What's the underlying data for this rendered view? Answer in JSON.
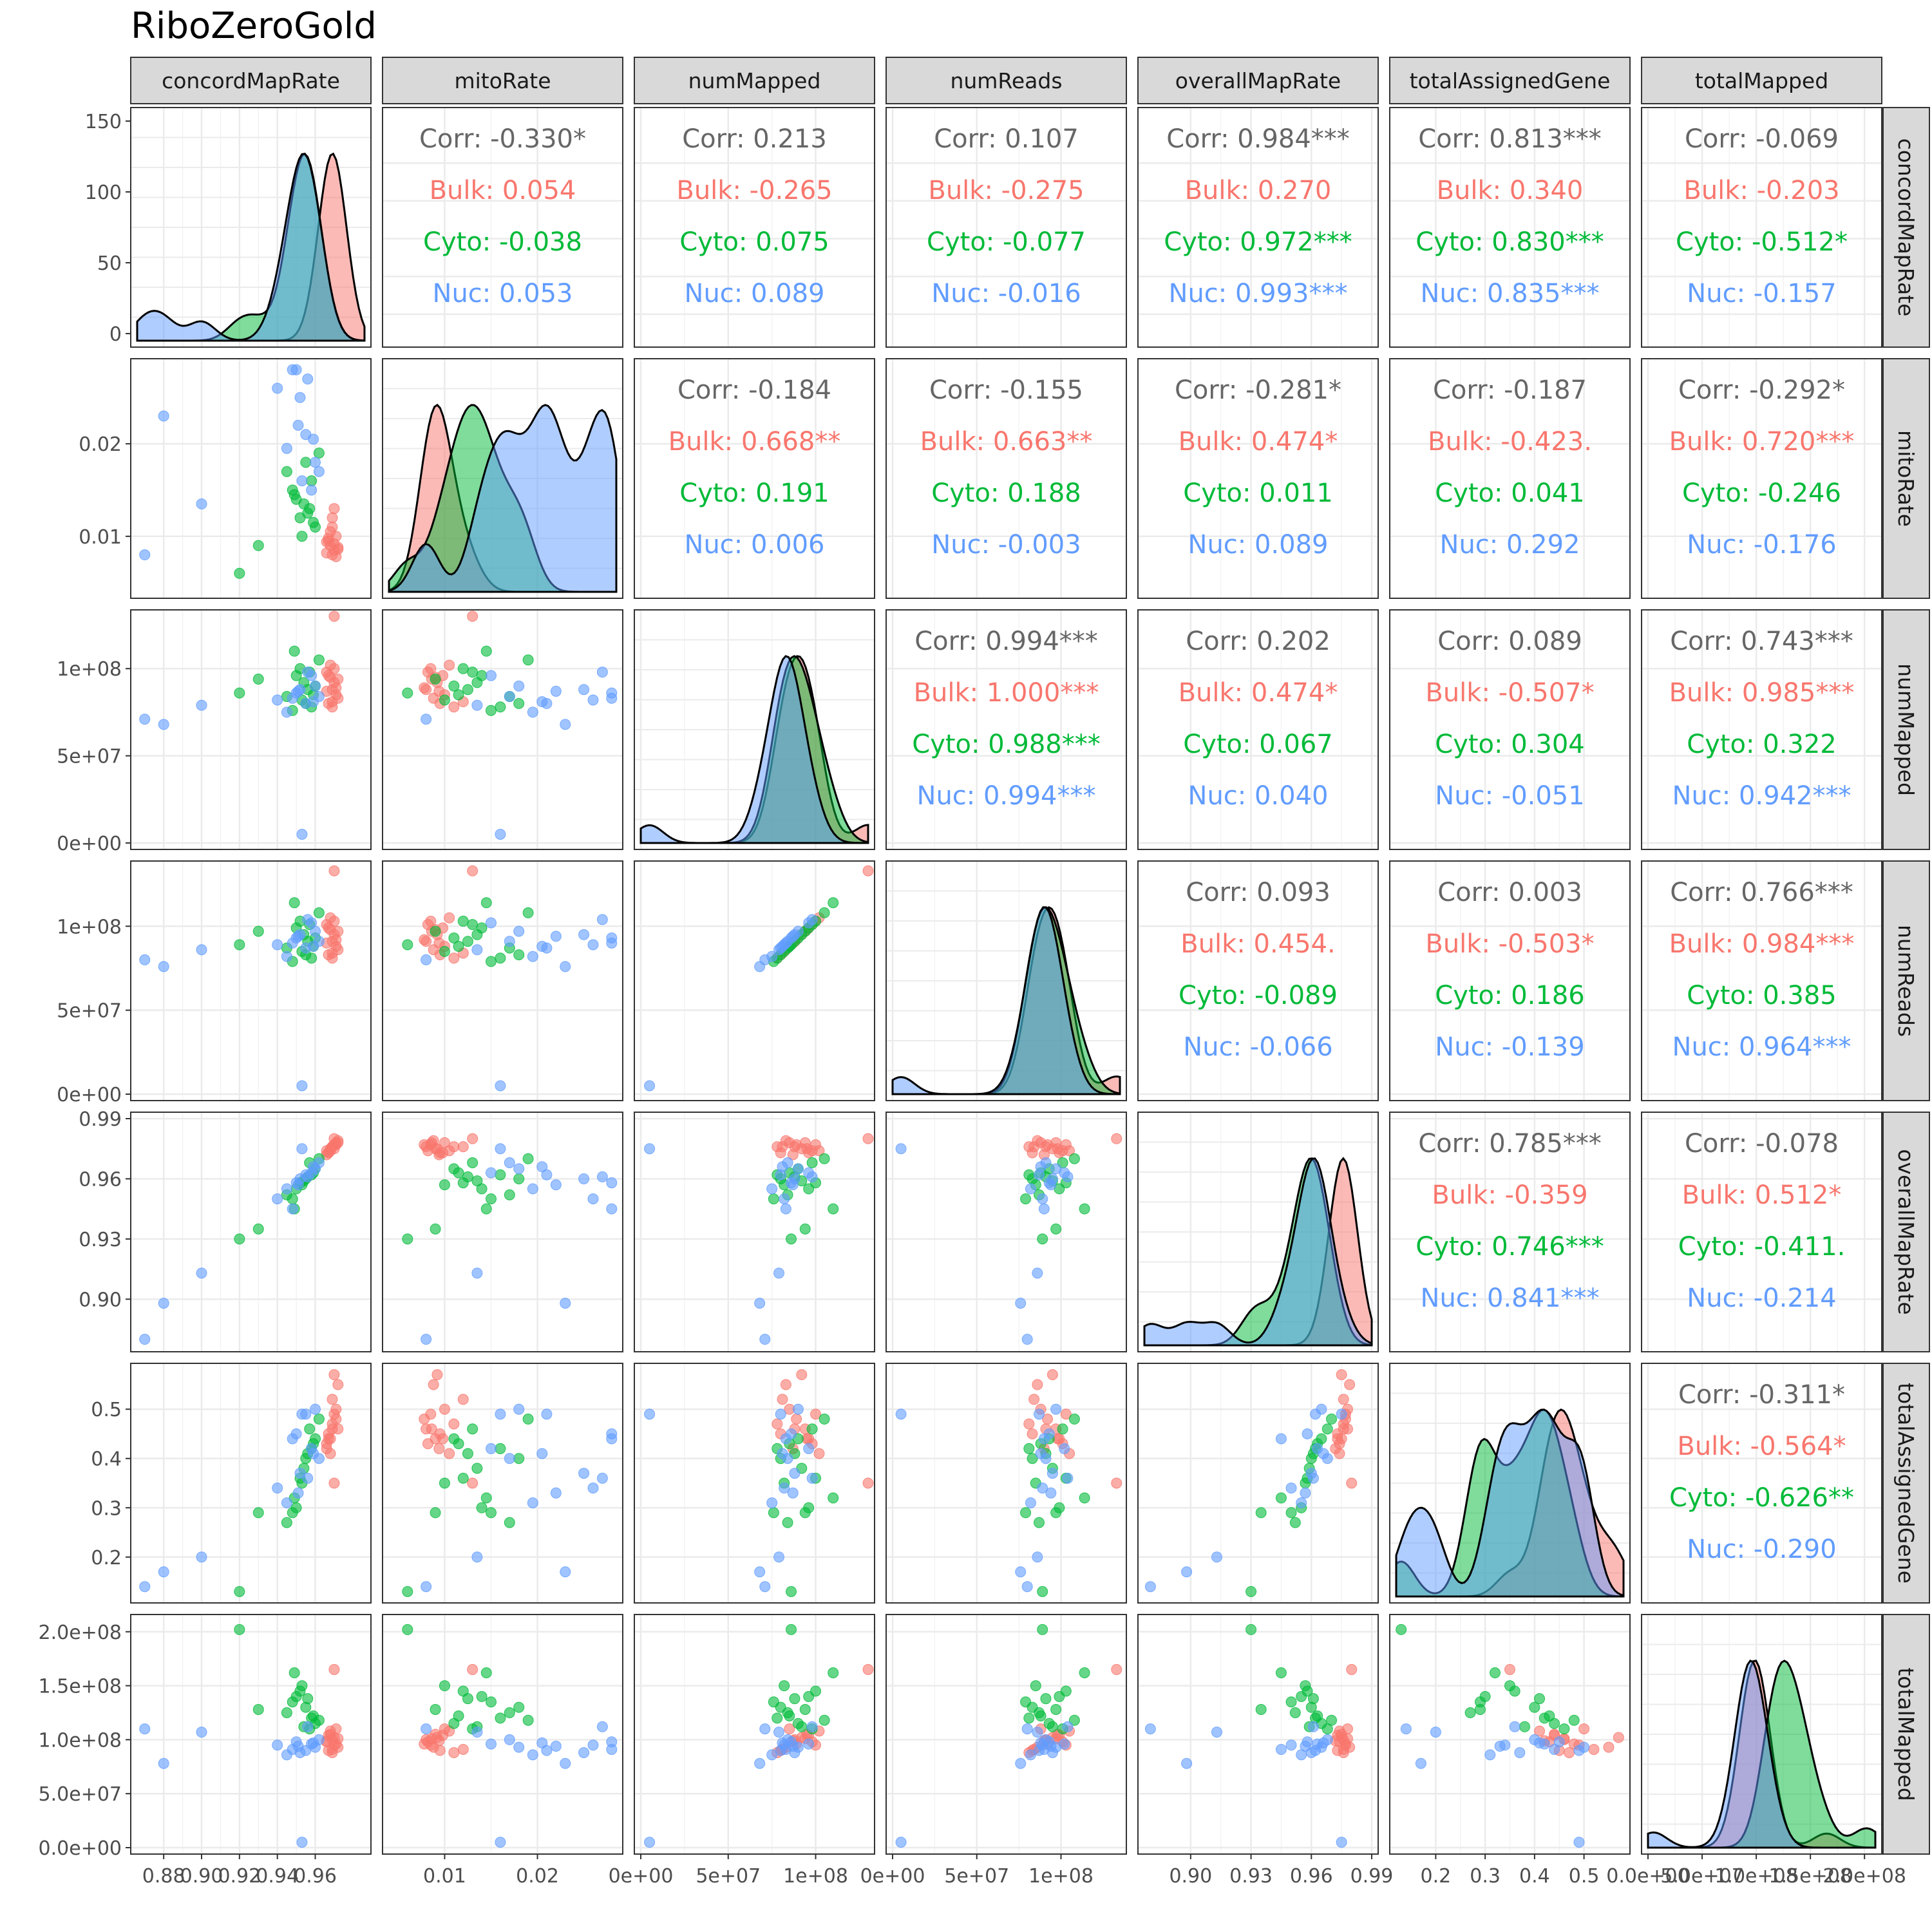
{
  "chart_data": {
    "type": "scatter",
    "title": "RiboZeroGold",
    "variables": [
      "concordMapRate",
      "mitoRate",
      "numMapped",
      "numReads",
      "overallMapRate",
      "totalAssignedGene",
      "totalMapped"
    ],
    "groups": [
      {
        "name": "Bulk",
        "color": "#F8766D"
      },
      {
        "name": "Cyto",
        "color": "#00BA38"
      },
      {
        "name": "Nuc",
        "color": "#619CFF"
      }
    ],
    "corr_label": "Corr",
    "corr_color": "#666666",
    "axes": {
      "concordMapRate": {
        "range": [
          0.866,
          0.986
        ],
        "ticks": [
          0.88,
          0.9,
          0.92,
          0.94,
          0.96
        ],
        "labels": [
          "0.88",
          "0.90",
          "0.92",
          "0.94",
          "0.96"
        ],
        "density_range": [
          -5,
          155
        ],
        "density_ticks": [
          0,
          50,
          100,
          150
        ],
        "density_labels": [
          "0",
          "50",
          "100",
          "150"
        ]
      },
      "mitoRate": {
        "range": [
          0.004,
          0.0285
        ],
        "ticks": [
          0.01,
          0.02
        ],
        "labels": [
          "0.01",
          "0.02"
        ]
      },
      "numMapped": {
        "range": [
          0,
          130000000.0
        ],
        "ticks": [
          0,
          50000000.0,
          100000000.0
        ],
        "labels": [
          "0e+00",
          "5e+07",
          "1e+08"
        ]
      },
      "numReads": {
        "range": [
          0,
          135000000.0
        ],
        "ticks": [
          0,
          50000000.0,
          100000000.0
        ],
        "labels": [
          "0e+00",
          "5e+07",
          "1e+08"
        ]
      },
      "overallMapRate": {
        "range": [
          0.877,
          0.99
        ],
        "ticks": [
          0.9,
          0.93,
          0.96,
          0.99
        ],
        "labels": [
          "0.90",
          "0.93",
          "0.96",
          "0.99"
        ]
      },
      "totalAssignedGene": {
        "range": [
          0.12,
          0.58
        ],
        "ticks": [
          0.2,
          0.3,
          0.4,
          0.5
        ],
        "labels": [
          "0.2",
          "0.3",
          "0.4",
          "0.5"
        ]
      },
      "totalMapped": {
        "range": [
          0,
          210000000.0
        ],
        "ticks": [
          0,
          50000000.0,
          100000000.0,
          150000000.0,
          200000000.0
        ],
        "labels": [
          "0.0e+00",
          "5.0e+07",
          "1.0e+08",
          "1.5e+08",
          "2.0e+08"
        ]
      }
    },
    "correlations": [
      {
        "row": "concordMapRate",
        "col": "mitoRate",
        "corr": "-0.330*",
        "Bulk": "0.054",
        "Cyto": "-0.038",
        "Nuc": "0.053"
      },
      {
        "row": "concordMapRate",
        "col": "numMapped",
        "corr": "0.213",
        "Bulk": "-0.265",
        "Cyto": "0.075",
        "Nuc": "0.089"
      },
      {
        "row": "concordMapRate",
        "col": "numReads",
        "corr": "0.107",
        "Bulk": "-0.275",
        "Cyto": "-0.077",
        "Nuc": "-0.016"
      },
      {
        "row": "concordMapRate",
        "col": "overallMapRate",
        "corr": "0.984***",
        "Bulk": "0.270",
        "Cyto": "0.972***",
        "Nuc": "0.993***"
      },
      {
        "row": "concordMapRate",
        "col": "totalAssignedGene",
        "corr": "0.813***",
        "Bulk": "0.340",
        "Cyto": "0.830***",
        "Nuc": "0.835***"
      },
      {
        "row": "concordMapRate",
        "col": "totalMapped",
        "corr": "-0.069",
        "Bulk": "-0.203",
        "Cyto": "-0.512*",
        "Nuc": "-0.157"
      },
      {
        "row": "mitoRate",
        "col": "numMapped",
        "corr": "-0.184",
        "Bulk": "0.668**",
        "Cyto": "0.191",
        "Nuc": "0.006"
      },
      {
        "row": "mitoRate",
        "col": "numReads",
        "corr": "-0.155",
        "Bulk": "0.663**",
        "Cyto": "0.188",
        "Nuc": "-0.003"
      },
      {
        "row": "mitoRate",
        "col": "overallMapRate",
        "corr": "-0.281*",
        "Bulk": "0.474*",
        "Cyto": "0.011",
        "Nuc": "0.089"
      },
      {
        "row": "mitoRate",
        "col": "totalAssignedGene",
        "corr": "-0.187",
        "Bulk": "-0.423.",
        "Cyto": "0.041",
        "Nuc": "0.292"
      },
      {
        "row": "mitoRate",
        "col": "totalMapped",
        "corr": "-0.292*",
        "Bulk": "0.720***",
        "Cyto": "-0.246",
        "Nuc": "-0.176"
      },
      {
        "row": "numMapped",
        "col": "numReads",
        "corr": "0.994***",
        "Bulk": "1.000***",
        "Cyto": "0.988***",
        "Nuc": "0.994***"
      },
      {
        "row": "numMapped",
        "col": "overallMapRate",
        "corr": "0.202",
        "Bulk": "0.474*",
        "Cyto": "0.067",
        "Nuc": "0.040"
      },
      {
        "row": "numMapped",
        "col": "totalAssignedGene",
        "corr": "0.089",
        "Bulk": "-0.507*",
        "Cyto": "0.304",
        "Nuc": "-0.051"
      },
      {
        "row": "numMapped",
        "col": "totalMapped",
        "corr": "0.743***",
        "Bulk": "0.985***",
        "Cyto": "0.322",
        "Nuc": "0.942***"
      },
      {
        "row": "numReads",
        "col": "overallMapRate",
        "corr": "0.093",
        "Bulk": "0.454.",
        "Cyto": "-0.089",
        "Nuc": "-0.066"
      },
      {
        "row": "numReads",
        "col": "totalAssignedGene",
        "corr": "0.003",
        "Bulk": "-0.503*",
        "Cyto": "0.186",
        "Nuc": "-0.139"
      },
      {
        "row": "numReads",
        "col": "totalMapped",
        "corr": "0.766***",
        "Bulk": "0.984***",
        "Cyto": "0.385",
        "Nuc": "0.964***"
      },
      {
        "row": "overallMapRate",
        "col": "totalAssignedGene",
        "corr": "0.785***",
        "Bulk": "-0.359",
        "Cyto": "0.746***",
        "Nuc": "0.841***"
      },
      {
        "row": "overallMapRate",
        "col": "totalMapped",
        "corr": "-0.078",
        "Bulk": "0.512*",
        "Cyto": "-0.411.",
        "Nuc": "-0.214"
      },
      {
        "row": "totalAssignedGene",
        "col": "totalMapped",
        "corr": "-0.311*",
        "Bulk": "-0.564*",
        "Cyto": "-0.626**",
        "Nuc": "-0.290"
      }
    ],
    "samples": {
      "Bulk": [
        [
          0.969,
          0.008,
          88000000.0,
          91000000.0,
          0.976,
          0.46,
          100000000.0
        ],
        [
          0.968,
          0.009,
          95000000.0,
          98000000.0,
          0.975,
          0.44,
          105000000.0
        ],
        [
          0.97,
          0.0085,
          100000000.0,
          103000000.0,
          0.977,
          0.49,
          95000000.0
        ],
        [
          0.967,
          0.0095,
          80000000.0,
          83000000.0,
          0.973,
          0.45,
          90000000.0
        ],
        [
          0.971,
          0.01,
          85000000.0,
          88000000.0,
          0.978,
          0.5,
          110000000.0
        ],
        [
          0.966,
          0.0082,
          98000000.0,
          101000000.0,
          0.974,
          0.43,
          98000000.0
        ],
        [
          0.969,
          0.011,
          78000000.0,
          81000000.0,
          0.976,
          0.47,
          88000000.0
        ],
        [
          0.97,
          0.0092,
          92000000.0,
          95000000.0,
          0.975,
          0.57,
          102000000.0
        ],
        [
          0.972,
          0.0088,
          83000000.0,
          86000000.0,
          0.979,
          0.55,
          93000000.0
        ],
        [
          0.968,
          0.0105,
          102000000.0,
          105000000.0,
          0.974,
          0.41,
          108000000.0
        ],
        [
          0.971,
          0.0078,
          89000000.0,
          92000000.0,
          0.977,
          0.48,
          96000000.0
        ],
        [
          0.967,
          0.0098,
          96000000.0,
          99000000.0,
          0.973,
          0.44,
          104000000.0
        ],
        [
          0.969,
          0.012,
          81000000.0,
          84000000.0,
          0.976,
          0.52,
          91000000.0
        ],
        [
          0.97,
          0.013,
          130000000.0,
          133000000.0,
          0.98,
          0.35,
          165000000.0
        ],
        [
          0.966,
          0.0094,
          87000000.0,
          90000000.0,
          0.972,
          0.42,
          99000000.0
        ],
        [
          0.972,
          0.0086,
          94000000.0,
          97000000.0,
          0.978,
          0.46,
          101000000.0
        ]
      ],
      "Cyto": [
        [
          0.955,
          0.018,
          80000000.0,
          83000000.0,
          0.96,
          0.4,
          130000000.0
        ],
        [
          0.95,
          0.014,
          96000000.0,
          99000000.0,
          0.955,
          0.3,
          140000000.0
        ],
        [
          0.92,
          0.006,
          86000000.0,
          89000000.0,
          0.93,
          0.13,
          202000000.0
        ],
        [
          0.958,
          0.016,
          78000000.0,
          81000000.0,
          0.962,
          0.42,
          120000000.0
        ],
        [
          0.952,
          0.012,
          100000000.0,
          103000000.0,
          0.958,
          0.36,
          145000000.0
        ],
        [
          0.945,
          0.017,
          84000000.0,
          87000000.0,
          0.952,
          0.27,
          125000000.0
        ],
        [
          0.96,
          0.011,
          90000000.0,
          93000000.0,
          0.965,
          0.44,
          115000000.0
        ],
        [
          0.948,
          0.015,
          76000000.0,
          79000000.0,
          0.95,
          0.29,
          135000000.0
        ],
        [
          0.957,
          0.013,
          98000000.0,
          101000000.0,
          0.968,
          0.46,
          110000000.0
        ],
        [
          0.953,
          0.01,
          82000000.0,
          85000000.0,
          0.957,
          0.35,
          150000000.0
        ],
        [
          0.962,
          0.019,
          105000000.0,
          108000000.0,
          0.97,
          0.48,
          118000000.0
        ],
        [
          0.93,
          0.009,
          94000000.0,
          97000000.0,
          0.935,
          0.29,
          128000000.0
        ],
        [
          0.956,
          0.0125,
          88000000.0,
          91000000.0,
          0.961,
          0.41,
          138000000.0
        ],
        [
          0.949,
          0.0145,
          110000000.0,
          114000000.0,
          0.945,
          0.32,
          162000000.0
        ],
        [
          0.959,
          0.0115,
          85000000.0,
          88000000.0,
          0.963,
          0.43,
          122000000.0
        ],
        [
          0.954,
          0.0135,
          92000000.0,
          95000000.0,
          0.959,
          0.38,
          112000000.0
        ]
      ],
      "Nuc": [
        [
          0.87,
          0.008,
          71000000.0,
          80000000.0,
          0.88,
          0.14,
          110000000.0
        ],
        [
          0.88,
          0.023,
          68000000.0,
          76000000.0,
          0.898,
          0.17,
          78000000.0
        ],
        [
          0.9,
          0.0135,
          79000000.0,
          86000000.0,
          0.913,
          0.2,
          107000000.0
        ],
        [
          0.94,
          0.026,
          82000000.0,
          89000000.0,
          0.95,
          0.34,
          95000000.0
        ],
        [
          0.95,
          0.028,
          86000000.0,
          93000000.0,
          0.958,
          0.45,
          98000000.0
        ],
        [
          0.955,
          0.021,
          80000000.0,
          87000000.0,
          0.962,
          0.49,
          90000000.0
        ],
        [
          0.96,
          0.018,
          90000000.0,
          97000000.0,
          0.965,
          0.5,
          93000000.0
        ],
        [
          0.952,
          0.025,
          88000000.0,
          95000000.0,
          0.96,
          0.37,
          88000000.0
        ],
        [
          0.958,
          0.015,
          96000000.0,
          102000000.0,
          0.963,
          0.42,
          96000000.0
        ],
        [
          0.945,
          0.0195,
          75000000.0,
          82000000.0,
          0.955,
          0.31,
          86000000.0
        ],
        [
          0.962,
          0.017,
          84000000.0,
          91000000.0,
          0.968,
          0.4,
          100000000.0
        ],
        [
          0.948,
          0.028,
          83000000.0,
          90000000.0,
          0.945,
          0.44,
          91000000.0
        ],
        [
          0.956,
          0.027,
          98000000.0,
          104000000.0,
          0.961,
          0.36,
          112000000.0
        ],
        [
          0.953,
          0.016,
          5000000.0,
          5000000.0,
          0.975,
          0.49,
          5000000.0
        ],
        [
          0.951,
          0.022,
          87000000.0,
          94000000.0,
          0.957,
          0.33,
          94000000.0
        ],
        [
          0.959,
          0.0205,
          81000000.0,
          88000000.0,
          0.966,
          0.41,
          97000000.0
        ]
      ]
    }
  }
}
